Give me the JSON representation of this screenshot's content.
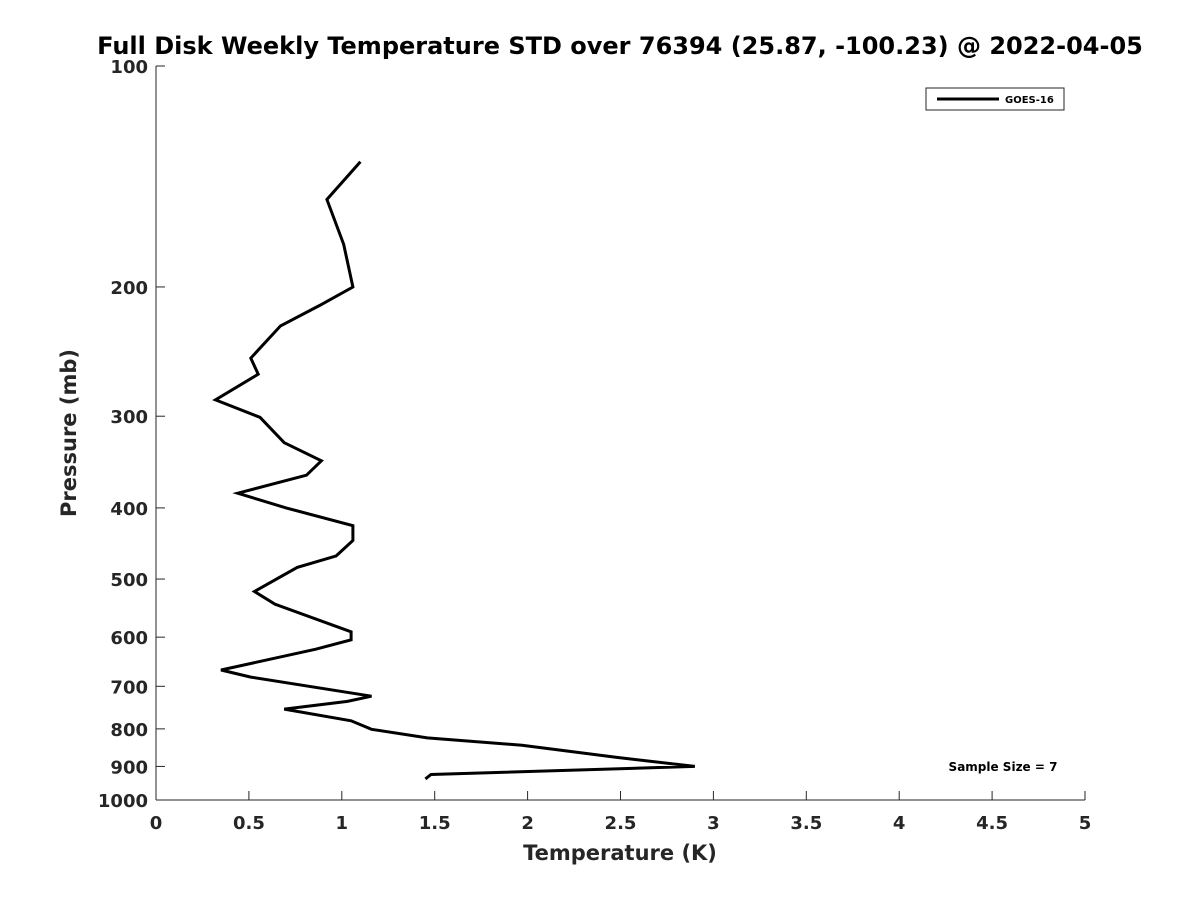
{
  "chart_data": {
    "type": "line",
    "title": "Full Disk Weekly Temperature STD over 76394 (25.87, -100.23) @ 2022-04-05",
    "xlabel": "Temperature (K)",
    "ylabel": "Pressure (mb)",
    "xlim": [
      0,
      5
    ],
    "ylim": [
      100,
      1000
    ],
    "yscale": "log",
    "y_reversed": true,
    "grid": false,
    "legend_position": "top-right",
    "x_ticks": [
      0,
      0.5,
      1,
      1.5,
      2,
      2.5,
      3,
      3.5,
      4,
      4.5,
      5
    ],
    "x_tick_labels": [
      "0",
      "0.5",
      "1",
      "1.5",
      "2",
      "2.5",
      "3",
      "3.5",
      "4",
      "4.5",
      "5"
    ],
    "y_ticks": [
      100,
      200,
      300,
      400,
      500,
      600,
      700,
      800,
      900,
      1000
    ],
    "y_tick_labels": [
      "100",
      "200",
      "300",
      "400",
      "500",
      "600",
      "700",
      "800",
      "900",
      "1000"
    ],
    "annotation": "Sample Size = 7",
    "series": [
      {
        "name": "GOES-16",
        "color": "#000000",
        "points": [
          {
            "x": 1.1,
            "p": 135
          },
          {
            "x": 0.92,
            "p": 152
          },
          {
            "x": 1.01,
            "p": 175
          },
          {
            "x": 1.06,
            "p": 200
          },
          {
            "x": 0.88,
            "p": 212
          },
          {
            "x": 0.67,
            "p": 226
          },
          {
            "x": 0.51,
            "p": 250
          },
          {
            "x": 0.55,
            "p": 263
          },
          {
            "x": 0.32,
            "p": 285
          },
          {
            "x": 0.56,
            "p": 301
          },
          {
            "x": 0.69,
            "p": 326
          },
          {
            "x": 0.89,
            "p": 345
          },
          {
            "x": 0.81,
            "p": 361
          },
          {
            "x": 0.44,
            "p": 382
          },
          {
            "x": 0.7,
            "p": 400
          },
          {
            "x": 1.06,
            "p": 423
          },
          {
            "x": 1.06,
            "p": 443
          },
          {
            "x": 0.97,
            "p": 465
          },
          {
            "x": 0.76,
            "p": 482
          },
          {
            "x": 0.53,
            "p": 520
          },
          {
            "x": 0.64,
            "p": 541
          },
          {
            "x": 1.05,
            "p": 590
          },
          {
            "x": 1.05,
            "p": 605
          },
          {
            "x": 0.86,
            "p": 623
          },
          {
            "x": 0.35,
            "p": 665
          },
          {
            "x": 0.51,
            "p": 680
          },
          {
            "x": 1.16,
            "p": 722
          },
          {
            "x": 1.03,
            "p": 734
          },
          {
            "x": 0.69,
            "p": 752
          },
          {
            "x": 1.05,
            "p": 780
          },
          {
            "x": 1.16,
            "p": 801
          },
          {
            "x": 1.46,
            "p": 823
          },
          {
            "x": 1.97,
            "p": 842
          },
          {
            "x": 2.48,
            "p": 875
          },
          {
            "x": 2.9,
            "p": 900
          },
          {
            "x": 1.48,
            "p": 923
          },
          {
            "x": 1.45,
            "p": 936
          }
        ]
      }
    ]
  }
}
